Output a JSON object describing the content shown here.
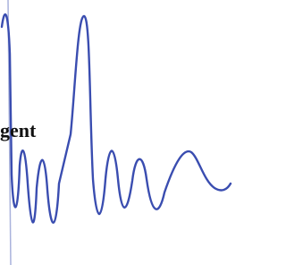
{
  "text": "gent"
}
